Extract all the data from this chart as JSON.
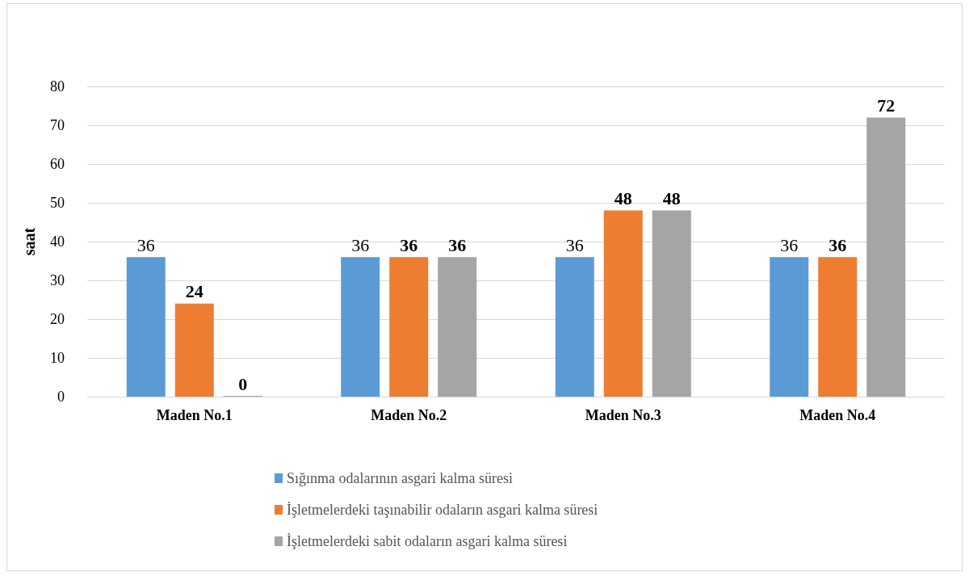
{
  "chart_data": {
    "type": "bar",
    "ylabel": "saat",
    "categories": [
      "Maden No.1",
      "Maden No.2",
      "Maden No.3",
      "Maden No.4"
    ],
    "series": [
      {
        "name": "Sığınma odalarının asgari kalma süresi",
        "color": "#5b9bd5",
        "values": [
          36,
          36,
          36,
          36
        ]
      },
      {
        "name": "İşletmelerdeki taşınabilir odaların asgari kalma süresi",
        "color": "#ed7d31",
        "values": [
          24,
          36,
          48,
          36
        ]
      },
      {
        "name": "İşletmelerdeki sabit odaların asgari kalma süresi",
        "color": "#a5a5a5",
        "values": [
          0,
          36,
          48,
          72
        ]
      }
    ],
    "ylim": [
      0,
      80
    ],
    "yticks": [
      0,
      10,
      20,
      30,
      40,
      50,
      60,
      70,
      80
    ],
    "grid": "y",
    "legend": "bottom",
    "data_labels": true
  }
}
